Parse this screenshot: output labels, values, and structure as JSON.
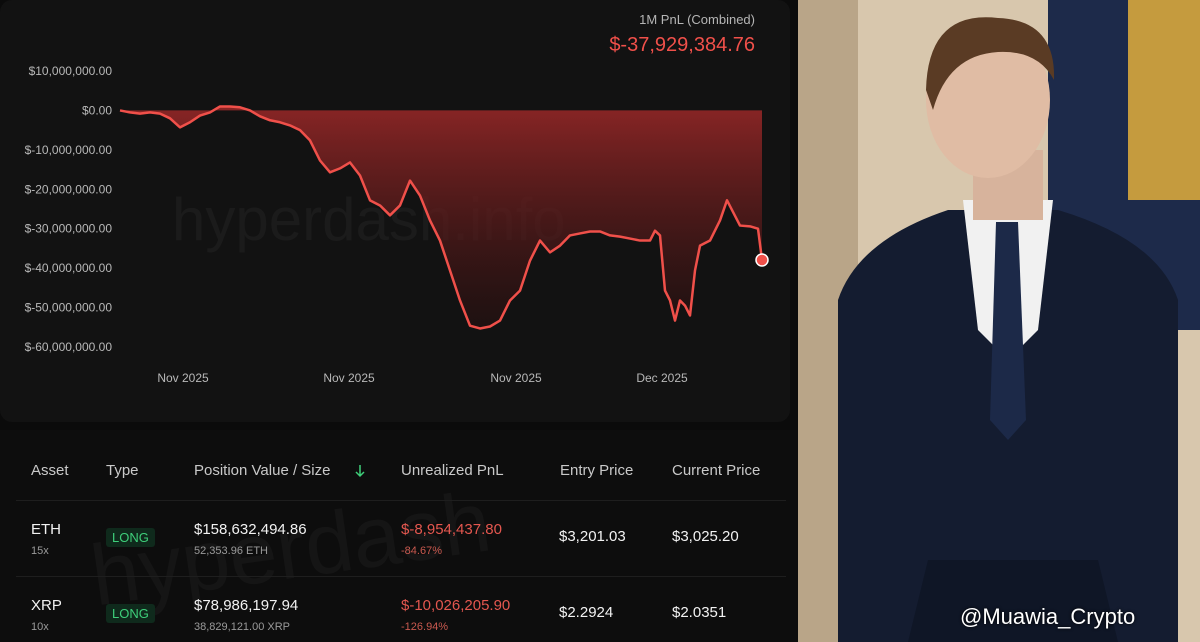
{
  "chart_data": {
    "type": "area",
    "title": "1M PnL (Combined)",
    "total": "$-37,929,384.76",
    "watermark": "hyperdash.info",
    "x": [
      0,
      1,
      2,
      3,
      4,
      5,
      6,
      7,
      8,
      9,
      10,
      11,
      12,
      13,
      14,
      15,
      16,
      17,
      18,
      19,
      20,
      21,
      22,
      23,
      24,
      25,
      26,
      27,
      28,
      29,
      30,
      31,
      32,
      33,
      34,
      35,
      36,
      37,
      38,
      39,
      40,
      41,
      42,
      43,
      44,
      45,
      46,
      47,
      48,
      49,
      50,
      51,
      52,
      53,
      53.5,
      54,
      54.5,
      55,
      55.5,
      56,
      56.5,
      57,
      57.5,
      58,
      59,
      60,
      60.7,
      62,
      63,
      63.8,
      64.2
    ],
    "series": [
      {
        "name": "PnL",
        "color": "#f0504a",
        "values": [
          0,
          -500000,
          -800000,
          -500000,
          -800000,
          -2000000,
          -4300000,
          -3000000,
          -1300000,
          -500000,
          1000000,
          1000000,
          800000,
          0,
          -1500000,
          -2500000,
          -3000000,
          -3800000,
          -5000000,
          -7600000,
          -12700000,
          -15700000,
          -14700000,
          -13200000,
          -16500000,
          -22800000,
          -24100000,
          -26600000,
          -24100000,
          -17800000,
          -21600000,
          -27900000,
          -33000000,
          -40600000,
          -48200000,
          -54600000,
          -55300000,
          -54800000,
          -53300000,
          -48200000,
          -45700000,
          -38100000,
          -33000000,
          -36000000,
          -34300000,
          -31700000,
          -31200000,
          -30700000,
          -30700000,
          -31700000,
          -32000000,
          -32500000,
          -33000000,
          -33000000,
          -30500000,
          -31700000,
          -45700000,
          -48200000,
          -53300000,
          -48200000,
          -49500000,
          -52000000,
          -40600000,
          -34300000,
          -33000000,
          -27900000,
          -22800000,
          -29200000,
          -29400000,
          -30000000,
          -37929384.76
        ]
      }
    ],
    "xlim": [
      0,
      64.2
    ],
    "xticks": [
      {
        "value": 6.3,
        "label": "Nov 2025"
      },
      {
        "value": 22.9,
        "label": "Nov 2025"
      },
      {
        "value": 39.6,
        "label": "Nov 2025"
      },
      {
        "value": 54.2,
        "label": "Dec 2025"
      }
    ],
    "ylim": [
      -60000000,
      10000000
    ],
    "yticks": [
      {
        "value": 10000000,
        "label": "$10,000,000.00"
      },
      {
        "value": 0,
        "label": "$0.00"
      },
      {
        "value": -10000000,
        "label": "$-10,000,000.00"
      },
      {
        "value": -20000000,
        "label": "$-20,000,000.00"
      },
      {
        "value": -30000000,
        "label": "$-30,000,000.00"
      },
      {
        "value": -40000000,
        "label": "$-40,000,000.00"
      },
      {
        "value": -50000000,
        "label": "$-50,000,000.00"
      },
      {
        "value": -60000000,
        "label": "$-60,000,000.00"
      }
    ]
  },
  "table": {
    "watermark": "hyperdash",
    "headers": [
      "Asset",
      "Type",
      "Position Value / Size",
      "Unrealized PnL",
      "Entry Price",
      "Current Price"
    ],
    "rows": [
      {
        "asset": "ETH",
        "leverage": "15x",
        "type": "LONG",
        "value": "$158,632,494.86",
        "size": "52,353.96 ETH",
        "pnl": "$-8,954,437.80",
        "pnl_pct": "-84.67%",
        "entry": "$3,201.03",
        "current": "$3,025.20"
      },
      {
        "asset": "XRP",
        "leverage": "10x",
        "type": "LONG",
        "value": "$78,986,197.94",
        "size": "38,829,121.00 XRP",
        "pnl": "$-10,026,205.90",
        "pnl_pct": "-126.94%",
        "entry": "$2.2924",
        "current": "$2.0351"
      }
    ]
  },
  "caption": "@Muawia_Crypto"
}
